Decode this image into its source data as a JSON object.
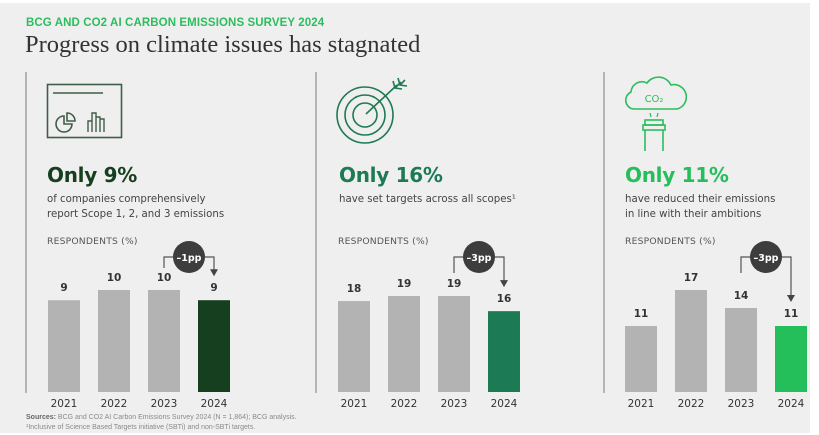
{
  "header": {
    "eyebrow": "BCG AND CO2 AI CARBON EMISSIONS SURVEY 2024",
    "title": "Progress on climate issues has stagnated"
  },
  "colors": {
    "panel_bg": "#f0efef",
    "eyebrow": "#2cbd5e",
    "gray_bar": "#b3b3b3",
    "badge": "#3d3d3d",
    "dark_green": "#163f20",
    "mid_green": "#1c7a55",
    "bright_green": "#24bf5b"
  },
  "panels": [
    {
      "icon": "dashboard-chart-icon",
      "headline": "Only 9%",
      "description_lines": [
        "of companies comprehensively",
        "report Scope 1, 2, and 3 emissions"
      ],
      "respondents_label": "RESPONDENTS (%)",
      "badge": "–1pp",
      "accent": "#163f20"
    },
    {
      "icon": "target-icon",
      "headline": "Only 16%",
      "description_lines": [
        "have set targets across all scopes¹"
      ],
      "respondents_label": "RESPONDENTS (%)",
      "badge": "–3pp",
      "accent": "#1c7a55"
    },
    {
      "icon": "co2-cloud-icon",
      "icon_text": "CO₂",
      "headline": "Only 11%",
      "description_lines": [
        "have reduced their emissions",
        "in line with their ambitions"
      ],
      "respondents_label": "RESPONDENTS (%)",
      "badge": "–3pp",
      "accent": "#24bf5b"
    }
  ],
  "chart_data": [
    {
      "type": "bar",
      "title": "Only 9%",
      "ylabel": "RESPONDENTS (%)",
      "categories": [
        "2021",
        "2022",
        "2023",
        "2024"
      ],
      "values": [
        9,
        10,
        10,
        9
      ],
      "value_labels": [
        "9",
        "10",
        "10",
        "9"
      ],
      "annotation": "–1pp",
      "ylim": [
        0,
        10
      ]
    },
    {
      "type": "bar",
      "title": "Only 16%",
      "ylabel": "RESPONDENTS (%)",
      "categories": [
        "2021",
        "2022",
        "2023",
        "2024"
      ],
      "values": [
        18,
        19,
        19,
        16
      ],
      "value_labels": [
        "18",
        "19",
        "19",
        "16"
      ],
      "annotation": "–3pp",
      "ylim": [
        0,
        19
      ]
    },
    {
      "type": "bar",
      "title": "Only 11%",
      "ylabel": "RESPONDENTS (%)",
      "categories": [
        "2021",
        "2022",
        "2023",
        "2024"
      ],
      "values": [
        11,
        17,
        14,
        11
      ],
      "value_labels": [
        "11",
        "17",
        "14",
        "11"
      ],
      "annotation": "–3pp",
      "ylim": [
        0,
        17
      ]
    }
  ],
  "footer": {
    "sources_label": "Sources:",
    "sources_text": " BCG and CO2 AI Carbon Emissions Survey 2024 (N = 1,864); BCG analysis.",
    "footnote": "¹Inclusive of Science Based Targets initiative (SBTi) and non-SBTi targets."
  }
}
